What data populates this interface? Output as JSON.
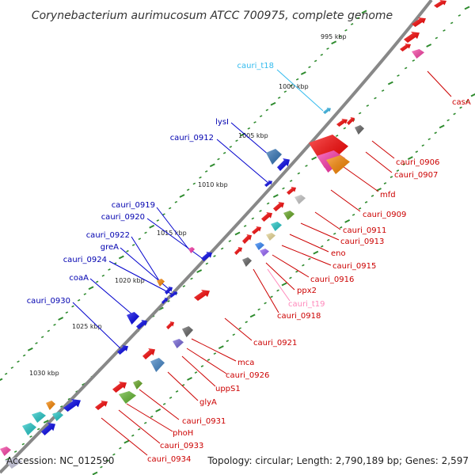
{
  "title": "Corynebacterium aurimucosum ATCC 700975, complete genome",
  "footer": {
    "accession": "Accession: NC_012590",
    "summary": "Topology: circular; Length: 2,790,189 bp; Genes: 2,597"
  },
  "ruler": [
    "995 kbp",
    "1000 kbp",
    "1005 kbp",
    "1010 kbp",
    "1015 kbp",
    "1020 kbp",
    "1025 kbp",
    "1030 kbp"
  ],
  "colors": {
    "backbone": "#8a8a8a",
    "forward_label": "#0000b0",
    "reverse_label": "#cc0000",
    "trna_forward_label": "#33bbee",
    "trna_reverse_label": "#ff88bb",
    "tick": "#2e8b2e"
  },
  "forward_labels": [
    "cauri_t18",
    "lysI",
    "cauri_0912",
    "cauri_0919",
    "cauri_0920",
    "cauri_0922",
    "greA",
    "cauri_0924",
    "coaA",
    "cauri_0930"
  ],
  "reverse_labels": [
    "casA",
    "cauri_0906",
    "cauri_0907",
    "mfd",
    "cauri_0909",
    "cauri_0911",
    "cauri_0913",
    "eno",
    "cauri_0915",
    "cauri_0916",
    "ppx2",
    "cauri_t19",
    "cauri_0918",
    "cauri_0921",
    "mca",
    "cauri_0926",
    "uppS1",
    "glyA",
    "cauri_0931",
    "phoH",
    "cauri_0933",
    "cauri_0934"
  ]
}
